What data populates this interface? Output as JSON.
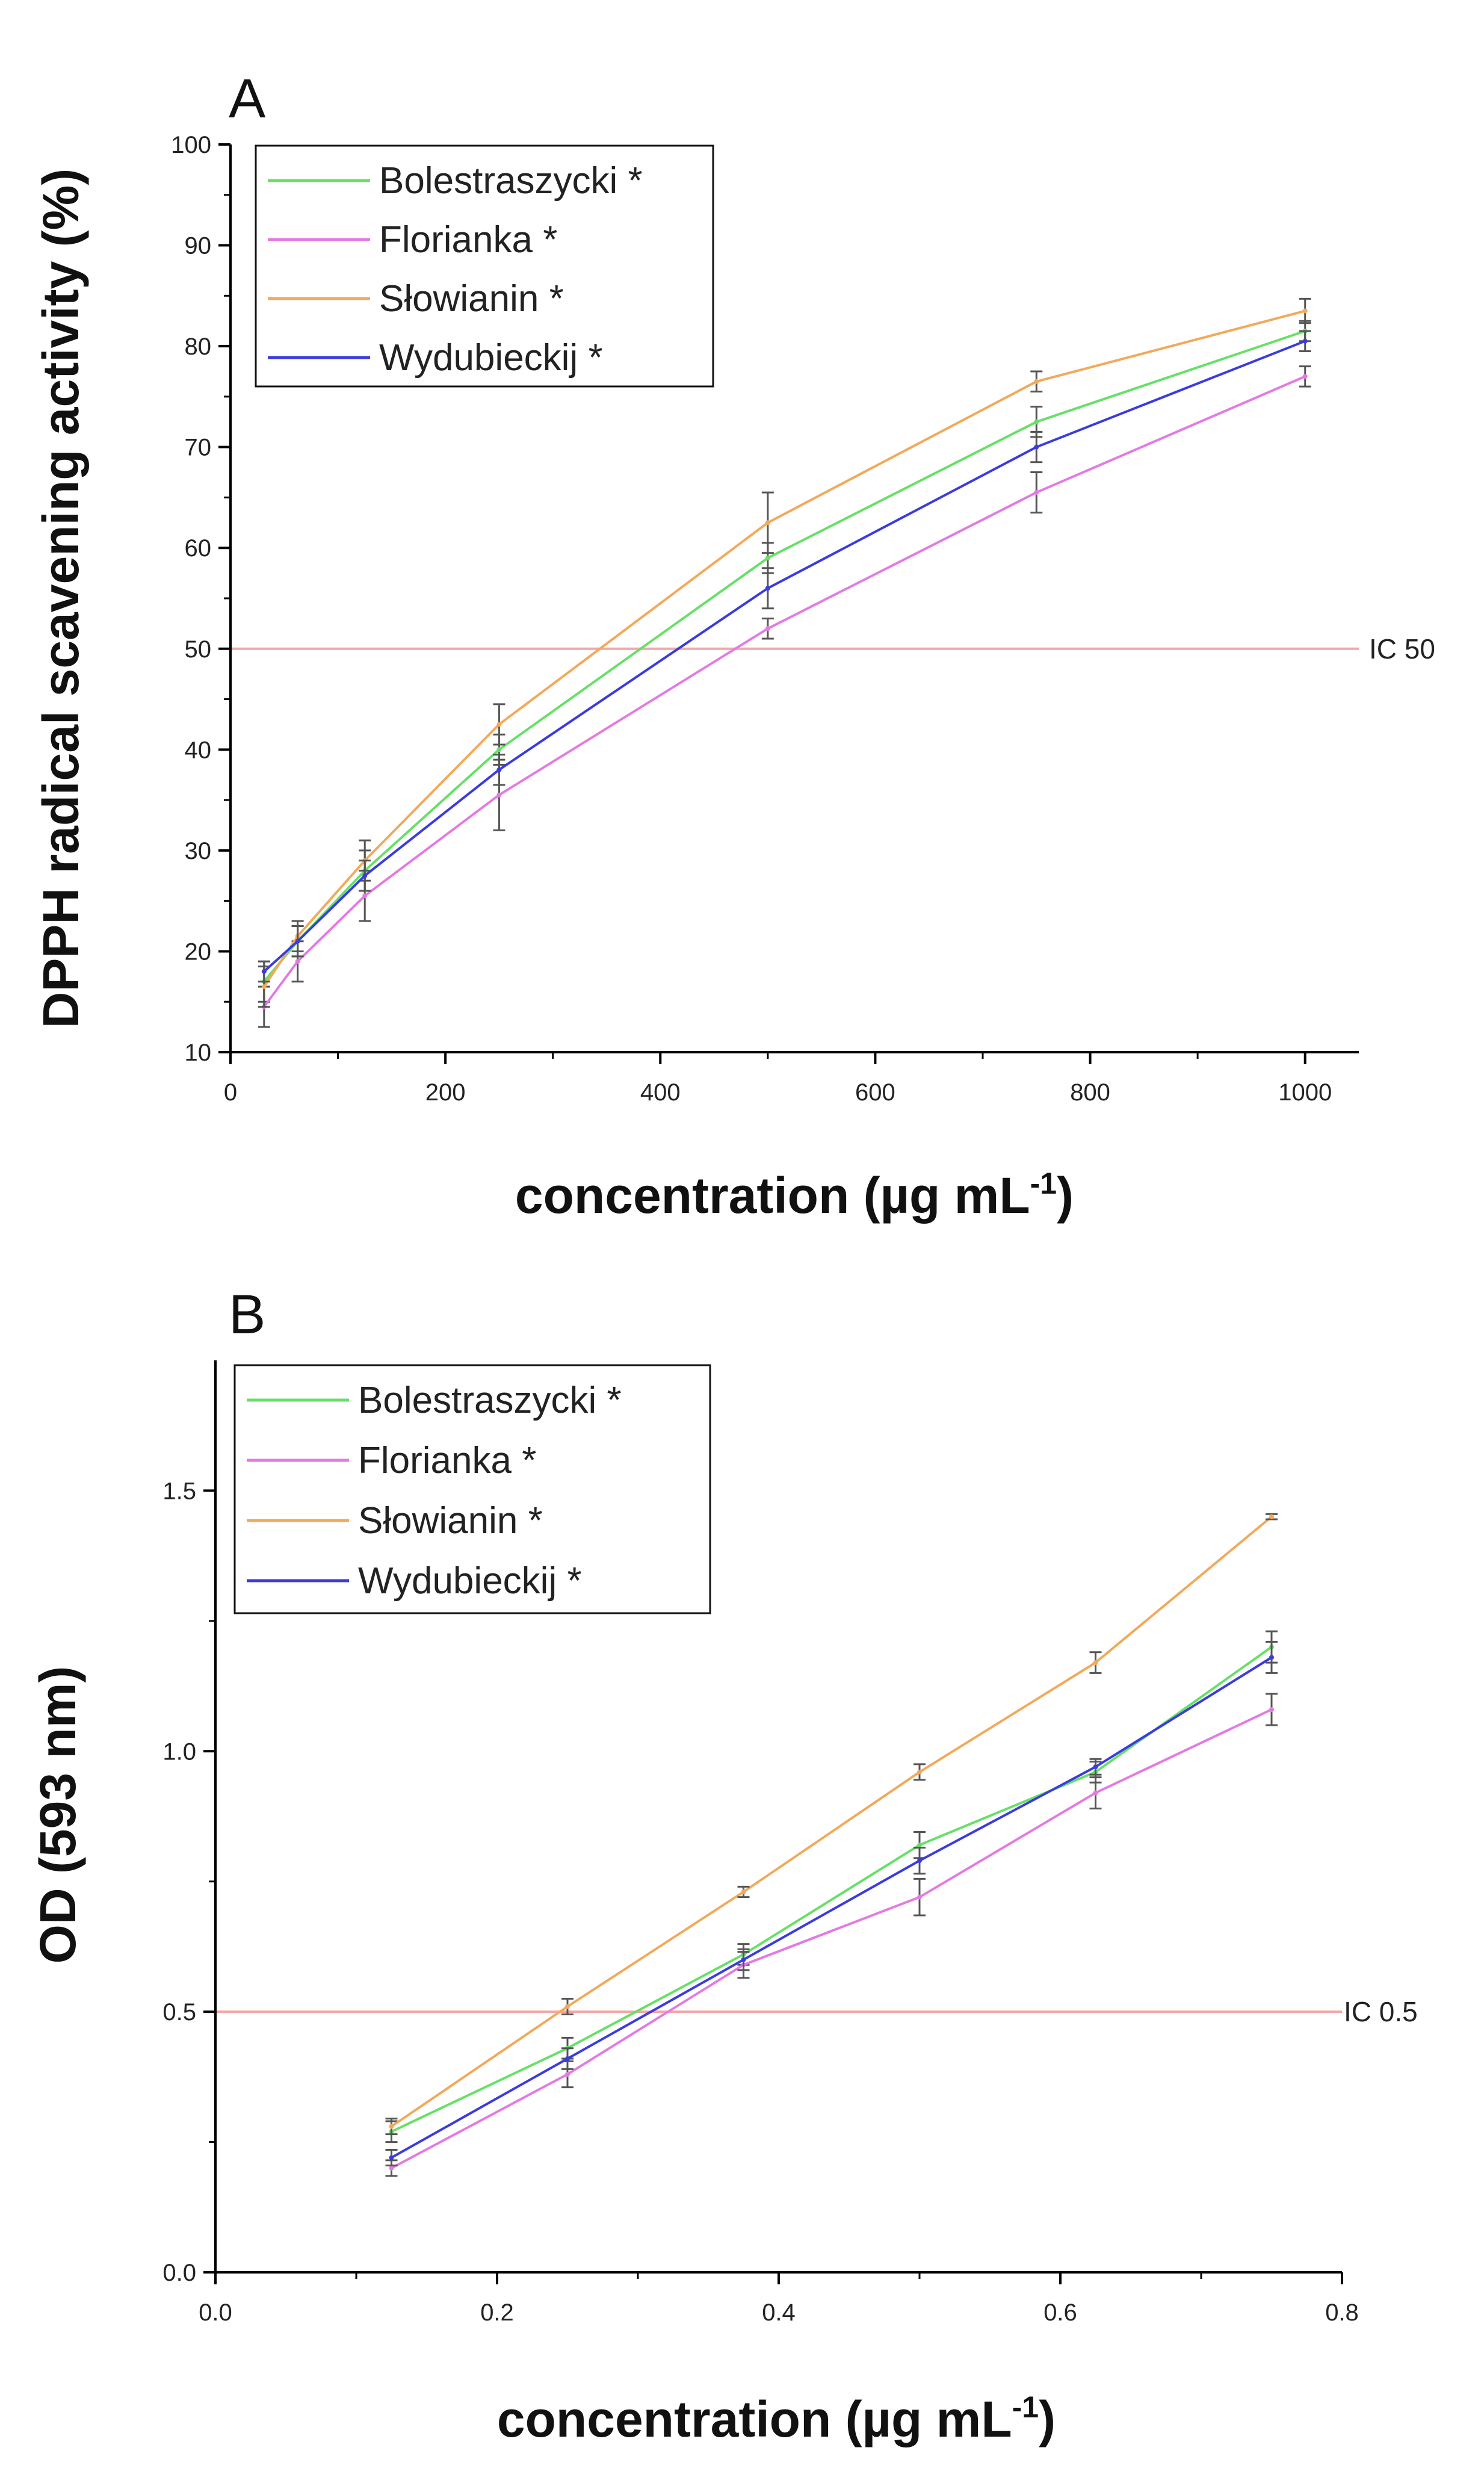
{
  "chart_data": [
    {
      "type": "line",
      "panel_label": "A",
      "xlabel": "concentration (µg mL",
      "xlabel_sup": "-1",
      "ylabel": "DPPH radical scavening activity (%)",
      "xlim": [
        0,
        1050
      ],
      "ylim": [
        10,
        100
      ],
      "xticks": [
        "0",
        "200",
        "400",
        "600",
        "800",
        "1000"
      ],
      "yticks": [
        "10",
        "20",
        "30",
        "40",
        "50",
        "60",
        "70",
        "80",
        "90",
        "100"
      ],
      "x": [
        31.25,
        62.5,
        125,
        250,
        500,
        750,
        1000
      ],
      "series": [
        {
          "name": "Bolestraszycki *",
          "color": "#66e066",
          "values": [
            17,
            21,
            28,
            40,
            59,
            72.5,
            81.5
          ],
          "errors": [
            2.0,
            1.5,
            2.0,
            1.5,
            1.5,
            1.5,
            1.0
          ]
        },
        {
          "name": "Florianka *",
          "color": "#e37ae3",
          "values": [
            14.5,
            19,
            25.5,
            35.5,
            52,
            65.5,
            77
          ],
          "errors": [
            2.0,
            2.0,
            2.5,
            3.5,
            1.0,
            2.0,
            1.0
          ]
        },
        {
          "name": "Słowianin *",
          "color": "#f2a95a",
          "values": [
            16.5,
            21.5,
            29,
            42.5,
            62.5,
            76.5,
            83.5
          ],
          "errors": [
            2.0,
            1.5,
            2.0,
            2.0,
            3.0,
            1.0,
            1.2
          ]
        },
        {
          "name": "Wydubieckij *",
          "color": "#3b3be0",
          "values": [
            18,
            21,
            27.5,
            38,
            56,
            70,
            80.5
          ],
          "errors": [
            1.0,
            1.5,
            1.5,
            1.5,
            2.0,
            1.5,
            1.0
          ]
        }
      ],
      "reference_line": {
        "value": 50,
        "label": "IC 50",
        "color": "#f4a7a7"
      },
      "legend_position": "top-left"
    },
    {
      "type": "line",
      "panel_label": "B",
      "xlabel": "concentration (µg mL",
      "xlabel_sup": "-1",
      "ylabel": "OD (593 nm)",
      "xlim": [
        0,
        0.8
      ],
      "ylim": [
        0,
        1.75
      ],
      "xticks": [
        "0.0",
        "0.2",
        "0.4",
        "0.6",
        "0.8"
      ],
      "yticks": [
        "0.0",
        "0.5",
        "1.0",
        "1.5"
      ],
      "x": [
        0.125,
        0.25,
        0.375,
        0.5,
        0.625,
        0.75
      ],
      "series": [
        {
          "name": "Bolestraszycki *",
          "color": "#66e066",
          "values": [
            0.27,
            0.43,
            0.61,
            0.82,
            0.96,
            1.2
          ],
          "errors": [
            0.02,
            0.02,
            0.02,
            0.025,
            0.02,
            0.03
          ]
        },
        {
          "name": "Florianka *",
          "color": "#e37ae3",
          "values": [
            0.2,
            0.38,
            0.59,
            0.72,
            0.92,
            1.08
          ],
          "errors": [
            0.015,
            0.025,
            0.025,
            0.035,
            0.03,
            0.03
          ]
        },
        {
          "name": "Słowianin *",
          "color": "#f2a95a",
          "values": [
            0.28,
            0.51,
            0.73,
            0.96,
            1.17,
            1.45
          ],
          "errors": [
            0.015,
            0.015,
            0.01,
            0.015,
            0.02,
            0.005
          ]
        },
        {
          "name": "Wydubieckij *",
          "color": "#3b3be0",
          "values": [
            0.22,
            0.41,
            0.6,
            0.79,
            0.97,
            1.18
          ],
          "errors": [
            0.015,
            0.02,
            0.02,
            0.025,
            0.015,
            0.03
          ]
        }
      ],
      "reference_line": {
        "value": 0.5,
        "label": "IC 0.5",
        "color": "#f4a7a7"
      },
      "legend_position": "top-left"
    }
  ]
}
